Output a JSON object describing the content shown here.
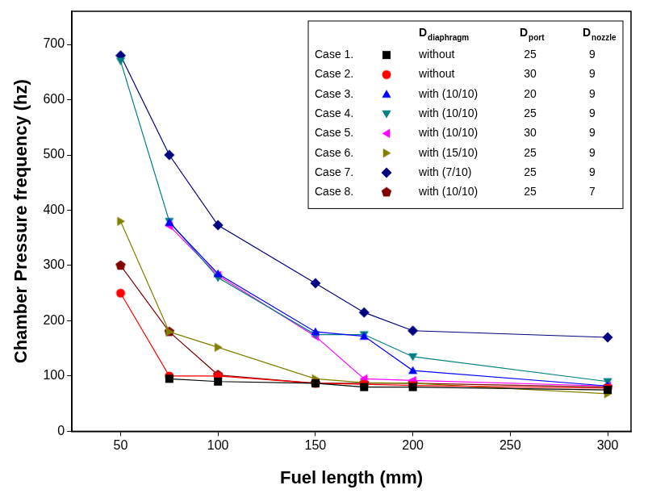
{
  "chart_data": {
    "type": "line",
    "x_label": "Fuel length (mm)",
    "y_label": "Chamber Pressure frequency (hz)",
    "x": [
      50,
      75,
      100,
      150,
      175,
      200,
      300
    ],
    "xlim": [
      25,
      312
    ],
    "xticks": [
      50,
      100,
      150,
      200,
      250,
      300
    ],
    "ylim": [
      0,
      760
    ],
    "yticks": [
      0,
      100,
      200,
      300,
      400,
      500,
      600,
      700
    ],
    "grid": false,
    "legend": "upper right",
    "legend_columns": [
      {
        "text": "D",
        "sub": "diaphragm"
      },
      {
        "text": "D",
        "sub": "port"
      },
      {
        "text": "D",
        "sub": "nozzle"
      }
    ],
    "series": [
      {
        "name": "Case 1.",
        "color": "#000000",
        "marker": "square",
        "diaphragm": "without",
        "port": 25,
        "nozzle": 9,
        "values": [
          null,
          95,
          90,
          87,
          80,
          80,
          75
        ]
      },
      {
        "name": "Case 2.",
        "color": "#ff0000",
        "marker": "circle",
        "diaphragm": "without",
        "port": 30,
        "nozzle": 9,
        "values": [
          250,
          100,
          100,
          87,
          85,
          83,
          78
        ]
      },
      {
        "name": "Case 3.",
        "color": "#0000ff",
        "marker": "triangle-up",
        "diaphragm": "with (10/10)",
        "port": 20,
        "nozzle": 9,
        "values": [
          null,
          378,
          285,
          180,
          172,
          110,
          82
        ]
      },
      {
        "name": "Case 4.",
        "color": "#008080",
        "marker": "triangle-down",
        "diaphragm": "with (10/10)",
        "port": 25,
        "nozzle": 9,
        "values": [
          670,
          380,
          278,
          175,
          175,
          135,
          90
        ]
      },
      {
        "name": "Case 5.",
        "color": "#ff00ff",
        "marker": "triangle-left",
        "diaphragm": "with (10/10)",
        "port": 30,
        "nozzle": 9,
        "values": [
          null,
          372,
          282,
          172,
          95,
          92,
          82
        ]
      },
      {
        "name": "Case 6.",
        "color": "#808000",
        "marker": "triangle-right",
        "diaphragm": "with (15/10)",
        "port": 25,
        "nozzle": 9,
        "values": [
          380,
          180,
          152,
          95,
          88,
          87,
          68
        ]
      },
      {
        "name": "Case 7.",
        "color": "#000080",
        "marker": "diamond",
        "diaphragm": "with (7/10)",
        "port": 25,
        "nozzle": 9,
        "values": [
          680,
          500,
          373,
          268,
          215,
          182,
          170
        ]
      },
      {
        "name": "Case 8.",
        "color": "#800000",
        "marker": "pentagon",
        "diaphragm": "with (10/10)",
        "port": 25,
        "nozzle": 7,
        "values": [
          300,
          180,
          102,
          87,
          87,
          87,
          80
        ]
      }
    ]
  }
}
